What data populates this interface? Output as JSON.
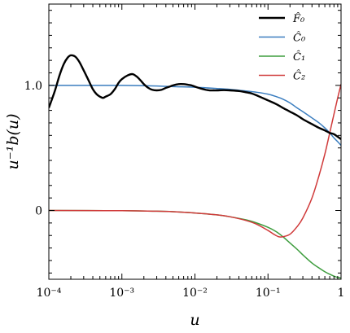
{
  "chart_data": {
    "type": "line",
    "xlabel": "u",
    "ylabel": "u⁻¹b(u)",
    "xscale": "log",
    "xlim": [
      0.0001,
      1
    ],
    "ylim": [
      -0.55,
      1.65
    ],
    "x_ticks": [
      {
        "value": 0.0001,
        "label": "10⁻⁴"
      },
      {
        "value": 0.001,
        "label": "10⁻³"
      },
      {
        "value": 0.01,
        "label": "10⁻²"
      },
      {
        "value": 0.1,
        "label": "10⁻¹"
      },
      {
        "value": 1,
        "label": "1"
      }
    ],
    "y_ticks": [
      {
        "value": 0,
        "label": "0"
      },
      {
        "value": 1.0,
        "label": "1.0"
      }
    ],
    "grid": false,
    "legend_position": "top-right",
    "series": [
      {
        "name": "F̂₀",
        "color": "#000000",
        "x": [
          0.0001,
          0.00012,
          0.00014,
          0.00016,
          0.00018,
          0.0002,
          0.00023,
          0.00026,
          0.0003,
          0.00035,
          0.0004,
          0.00045,
          0.0005,
          0.00055,
          0.0006,
          0.0007,
          0.0008,
          0.0009,
          0.001,
          0.0012,
          0.0014,
          0.0016,
          0.0018,
          0.002,
          0.0023,
          0.0026,
          0.003,
          0.0035,
          0.004,
          0.0045,
          0.005,
          0.006,
          0.007,
          0.008,
          0.009,
          0.01,
          0.012,
          0.014,
          0.016,
          0.018,
          0.02,
          0.025,
          0.03,
          0.04,
          0.05,
          0.06,
          0.07,
          0.08,
          0.1,
          0.13,
          0.16,
          0.2,
          0.25,
          0.3,
          0.4,
          0.5,
          0.6,
          0.7,
          0.8,
          1.0
        ],
        "y": [
          0.82,
          0.95,
          1.08,
          1.17,
          1.22,
          1.24,
          1.23,
          1.19,
          1.12,
          1.04,
          0.97,
          0.93,
          0.91,
          0.9,
          0.91,
          0.93,
          0.97,
          1.02,
          1.05,
          1.08,
          1.09,
          1.07,
          1.04,
          1.01,
          0.98,
          0.965,
          0.96,
          0.965,
          0.98,
          0.99,
          1.0,
          1.01,
          1.01,
          1.005,
          1.0,
          0.99,
          0.975,
          0.965,
          0.96,
          0.96,
          0.96,
          0.962,
          0.96,
          0.955,
          0.945,
          0.935,
          0.92,
          0.905,
          0.88,
          0.85,
          0.82,
          0.79,
          0.76,
          0.73,
          0.69,
          0.66,
          0.64,
          0.62,
          0.61,
          0.57
        ]
      },
      {
        "name": "Ĉ₀",
        "color": "#3a7dbf",
        "x": [
          0.0001,
          0.0003,
          0.001,
          0.003,
          0.005,
          0.01,
          0.02,
          0.03,
          0.05,
          0.07,
          0.1,
          0.13,
          0.16,
          0.2,
          0.25,
          0.3,
          0.4,
          0.5,
          0.6,
          0.7,
          0.8,
          0.9,
          1.0
        ],
        "y": [
          1.0,
          1.0,
          1.0,
          0.995,
          0.99,
          0.985,
          0.975,
          0.968,
          0.955,
          0.945,
          0.93,
          0.91,
          0.89,
          0.86,
          0.82,
          0.79,
          0.74,
          0.7,
          0.66,
          0.62,
          0.58,
          0.55,
          0.52
        ]
      },
      {
        "name": "Ĉ₁",
        "color": "#3e9d3e",
        "x": [
          0.0001,
          0.001,
          0.003,
          0.005,
          0.01,
          0.02,
          0.03,
          0.05,
          0.07,
          0.1,
          0.13,
          0.16,
          0.2,
          0.25,
          0.3,
          0.4,
          0.5,
          0.6,
          0.7,
          0.8,
          0.9,
          1.0
        ],
        "y": [
          0.0,
          -0.002,
          -0.006,
          -0.01,
          -0.02,
          -0.035,
          -0.05,
          -0.075,
          -0.1,
          -0.135,
          -0.17,
          -0.21,
          -0.26,
          -0.31,
          -0.355,
          -0.42,
          -0.46,
          -0.49,
          -0.51,
          -0.525,
          -0.535,
          -0.54
        ]
      },
      {
        "name": "Ĉ₂",
        "color": "#d03a3a",
        "x": [
          0.0001,
          0.001,
          0.003,
          0.005,
          0.01,
          0.02,
          0.03,
          0.05,
          0.07,
          0.1,
          0.12,
          0.14,
          0.16,
          0.2,
          0.25,
          0.3,
          0.4,
          0.5,
          0.6,
          0.7,
          0.8,
          0.9,
          1.0
        ],
        "y": [
          0.0,
          -0.002,
          -0.006,
          -0.01,
          -0.02,
          -0.035,
          -0.05,
          -0.08,
          -0.11,
          -0.16,
          -0.19,
          -0.21,
          -0.21,
          -0.19,
          -0.13,
          -0.06,
          0.1,
          0.28,
          0.45,
          0.62,
          0.77,
          0.9,
          1.01
        ]
      }
    ]
  }
}
